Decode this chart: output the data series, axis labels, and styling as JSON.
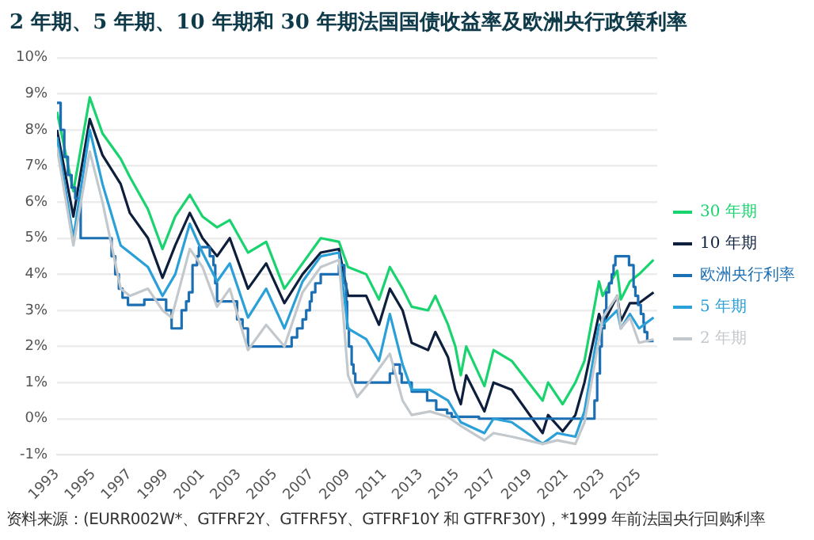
{
  "chart_data": {
    "type": "line",
    "title": "2 年期、5 年期、10 年期和 30 年期法国国债收益率及欧洲央行政策利率",
    "annotations": [
      "资料来源：(EURR002W*、GTFRF2Y、GTFRF5Y、GTFRF10Y 和 GTFRF30Y)，*1999 年前法国央行回购利率"
    ],
    "xlim": [
      1993,
      2026
    ],
    "xticks": [
      1993,
      1995,
      1997,
      1999,
      2001,
      2003,
      2005,
      2007,
      2009,
      2011,
      2013,
      2015,
      2017,
      2019,
      2021,
      2023,
      2025
    ],
    "ylim": [
      -1,
      10
    ],
    "yticks": [
      {
        "value": -1,
        "label": "-1%"
      },
      {
        "value": 0,
        "label": "0%"
      },
      {
        "value": 1,
        "label": "1%"
      },
      {
        "value": 2,
        "label": "2%"
      },
      {
        "value": 3,
        "label": "3%"
      },
      {
        "value": 4,
        "label": "4%"
      },
      {
        "value": 5,
        "label": "5%"
      },
      {
        "value": 6,
        "label": "6%"
      },
      {
        "value": 7,
        "label": "7%"
      },
      {
        "value": 8,
        "label": "8%"
      },
      {
        "value": 9,
        "label": "9%"
      },
      {
        "value": 10,
        "label": "10%"
      }
    ],
    "grid": "y",
    "legend": "right",
    "marker": "none",
    "line_style": "solid",
    "series": [
      {
        "name": "30 年期",
        "color": "#19d46e",
        "x": [
          1993,
          1993.9,
          1994.8,
          1995.5,
          1996.5,
          1997,
          1998,
          1998.8,
          1999.5,
          2000.3,
          2001,
          2001.8,
          2002.5,
          2003.5,
          2004.5,
          2005.5,
          2006.5,
          2007.5,
          2008.5,
          2009,
          2010,
          2010.7,
          2011.3,
          2012,
          2012.5,
          2013.4,
          2013.8,
          2014.5,
          2014.9,
          2015.2,
          2015.5,
          2016.5,
          2017,
          2018,
          2019.7,
          2020,
          2020.8,
          2021.5,
          2022,
          2022.8,
          2023,
          2023.8,
          2024,
          2024.5,
          2025,
          2025.8
        ],
        "values": [
          8.5,
          6.3,
          8.9,
          7.9,
          7.2,
          6.7,
          5.8,
          4.7,
          5.6,
          6.2,
          5.6,
          5.3,
          5.5,
          4.6,
          4.9,
          3.6,
          4.3,
          5.0,
          4.9,
          4.2,
          4.0,
          3.3,
          4.2,
          3.6,
          3.1,
          3.0,
          3.4,
          2.6,
          2.0,
          1.2,
          2.0,
          0.9,
          1.9,
          1.6,
          0.5,
          1.0,
          0.4,
          1.0,
          1.6,
          3.8,
          3.4,
          4.1,
          3.3,
          3.8,
          4.0,
          4.4
        ]
      },
      {
        "name": "10 年期",
        "color": "#0e1f3d",
        "x": [
          1993,
          1993.9,
          1994.8,
          1995.5,
          1996.5,
          1997,
          1998,
          1998.8,
          1999.5,
          2000.3,
          2001,
          2001.8,
          2002.5,
          2003.5,
          2004.5,
          2005.5,
          2006.5,
          2007.5,
          2008.5,
          2009,
          2010,
          2010.7,
          2011.3,
          2012,
          2012.5,
          2013.4,
          2013.8,
          2014.5,
          2014.9,
          2015.2,
          2015.5,
          2016.5,
          2017,
          2018,
          2019.7,
          2020,
          2020.8,
          2021.5,
          2022,
          2022.8,
          2023,
          2023.8,
          2024,
          2024.5,
          2025,
          2025.8
        ],
        "values": [
          8.0,
          5.6,
          8.3,
          7.3,
          6.5,
          5.7,
          5.0,
          3.9,
          4.8,
          5.7,
          5.0,
          4.5,
          5.0,
          3.6,
          4.3,
          3.2,
          4.0,
          4.6,
          4.7,
          3.4,
          3.4,
          2.6,
          3.6,
          3.0,
          2.1,
          1.9,
          2.4,
          1.7,
          0.8,
          0.4,
          1.2,
          0.2,
          1.0,
          0.8,
          -0.4,
          0.1,
          -0.35,
          0.1,
          1.0,
          2.9,
          2.6,
          3.4,
          2.7,
          3.2,
          3.2,
          3.5
        ]
      },
      {
        "name": "欧洲央行利率",
        "color": "#1d6fb3",
        "type": "step",
        "x": [
          1993,
          1993.2,
          1993.4,
          1993.6,
          1993.8,
          1994.0,
          1994.3,
          1996.0,
          1996.2,
          1996.4,
          1996.6,
          1996.9,
          1997.8,
          1999.0,
          1999.3,
          1999.85,
          2000.1,
          2000.25,
          2000.45,
          2000.7,
          2000.8,
          2001.4,
          2001.6,
          2001.7,
          2001.8,
          2002.9,
          2003.2,
          2003.5,
          2005.9,
          2006.2,
          2006.5,
          2006.7,
          2006.9,
          2007.0,
          2007.2,
          2007.5,
          2008.5,
          2008.8,
          2008.9,
          2008.95,
          2009.05,
          2009.2,
          2009.3,
          2009.4,
          2011.3,
          2011.5,
          2011.85,
          2011.95,
          2012.5,
          2013.35,
          2013.85,
          2014.45,
          2014.7,
          2016.2,
          2022.55,
          2022.7,
          2022.85,
          2022.95,
          2023.1,
          2023.2,
          2023.35,
          2023.5,
          2023.6,
          2023.7,
          2024.45,
          2024.7,
          2024.8,
          2024.95,
          2025.1,
          2025.25,
          2025.3,
          2025.45,
          2025.8
        ],
        "values": [
          8.75,
          8.0,
          7.25,
          6.75,
          6.4,
          6.1,
          5.0,
          4.5,
          4.0,
          3.6,
          3.35,
          3.15,
          3.3,
          3.0,
          2.5,
          3.0,
          3.25,
          3.5,
          4.25,
          4.5,
          4.75,
          4.5,
          4.25,
          3.75,
          3.25,
          2.75,
          2.5,
          2.0,
          2.25,
          2.5,
          2.75,
          3.0,
          3.25,
          3.5,
          3.75,
          4.0,
          4.25,
          3.75,
          3.25,
          2.5,
          2.0,
          1.5,
          1.25,
          1.0,
          1.25,
          1.5,
          1.25,
          1.0,
          0.75,
          0.5,
          0.25,
          0.15,
          0.05,
          0.0,
          0.5,
          1.25,
          2.0,
          2.5,
          3.0,
          3.5,
          3.75,
          4.0,
          4.25,
          4.5,
          4.25,
          3.65,
          3.4,
          3.15,
          2.9,
          2.65,
          2.4,
          2.15,
          2.15
        ]
      },
      {
        "name": "5 年期",
        "color": "#2a9fd8",
        "x": [
          1993,
          1993.9,
          1994.8,
          1995.5,
          1996.5,
          1997,
          1998,
          1998.8,
          1999.5,
          2000.3,
          2001,
          2001.8,
          2002.5,
          2003.5,
          2004.5,
          2005.5,
          2006.5,
          2007.5,
          2008.5,
          2009,
          2010,
          2010.7,
          2011.3,
          2012,
          2012.5,
          2013.5,
          2014.5,
          2015.2,
          2016.5,
          2017,
          2018,
          2019.7,
          2020.5,
          2021.5,
          2022,
          2022.8,
          2023,
          2023.8,
          2024,
          2024.5,
          2025,
          2025.8
        ],
        "values": [
          7.8,
          5.0,
          8.0,
          6.5,
          4.8,
          4.6,
          4.2,
          3.4,
          4.0,
          5.4,
          4.6,
          3.8,
          4.3,
          2.8,
          3.6,
          2.5,
          3.8,
          4.5,
          4.6,
          2.5,
          2.2,
          1.6,
          2.9,
          1.5,
          0.8,
          0.8,
          0.5,
          -0.1,
          -0.4,
          0.0,
          -0.1,
          -0.7,
          -0.4,
          -0.5,
          0.2,
          2.6,
          2.6,
          3.0,
          2.5,
          2.9,
          2.5,
          2.8
        ]
      },
      {
        "name": "2 年期",
        "color": "#c3c8cd",
        "x": [
          1993,
          1993.9,
          1994.8,
          1995.5,
          1996.5,
          1997,
          1998,
          1998.8,
          1999.3,
          2000.3,
          2001,
          2001.8,
          2002.5,
          2003.5,
          2004.5,
          2005.5,
          2006.5,
          2007.5,
          2008.5,
          2009,
          2009.5,
          2010,
          2011.3,
          2012,
          2012.5,
          2013.5,
          2014.5,
          2015.2,
          2016.5,
          2017,
          2018,
          2019.7,
          2020.5,
          2021.5,
          2022,
          2022.8,
          2023,
          2023.8,
          2024,
          2024.5,
          2025,
          2025.8
        ],
        "values": [
          7.5,
          4.8,
          7.4,
          6.0,
          3.6,
          3.4,
          3.6,
          3.0,
          2.8,
          4.7,
          4.2,
          3.1,
          3.6,
          1.9,
          2.6,
          2.0,
          3.5,
          4.2,
          4.4,
          1.2,
          0.6,
          0.9,
          1.8,
          0.5,
          0.1,
          0.2,
          0.05,
          -0.2,
          -0.6,
          -0.4,
          -0.5,
          -0.7,
          -0.6,
          -0.7,
          -0.1,
          2.2,
          2.8,
          3.4,
          2.5,
          2.8,
          2.1,
          2.2
        ]
      }
    ]
  }
}
